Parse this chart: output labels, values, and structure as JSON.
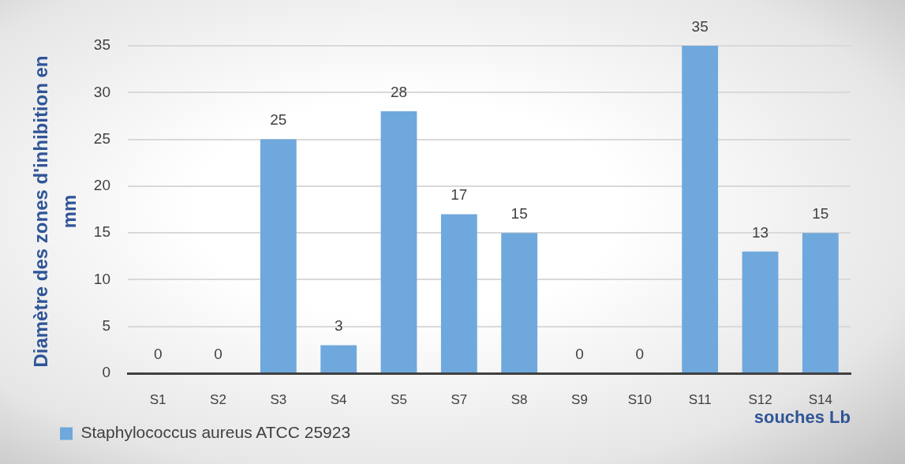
{
  "chart_data": {
    "type": "bar",
    "xlabel": "souches Lb",
    "ylabel": "Diamètre des zones d'inhibition en mm",
    "categories": [
      "S1",
      "S2",
      "S3",
      "S4",
      "S5",
      "S7",
      "S8",
      "S9",
      "S10",
      "S11",
      "S12",
      "S14"
    ],
    "series": [
      {
        "name": "Staphylococcus aureus ATCC 25923",
        "color": "#6fa8dc",
        "values": [
          0,
          0,
          25,
          3,
          28,
          17,
          15,
          0,
          0,
          35,
          13,
          15
        ]
      }
    ],
    "ylim": [
      0,
      35
    ],
    "yticks": [
      0,
      5,
      10,
      15,
      20,
      25,
      30,
      35
    ],
    "grid": "y",
    "legend": "bottom left",
    "data_labels": true
  }
}
